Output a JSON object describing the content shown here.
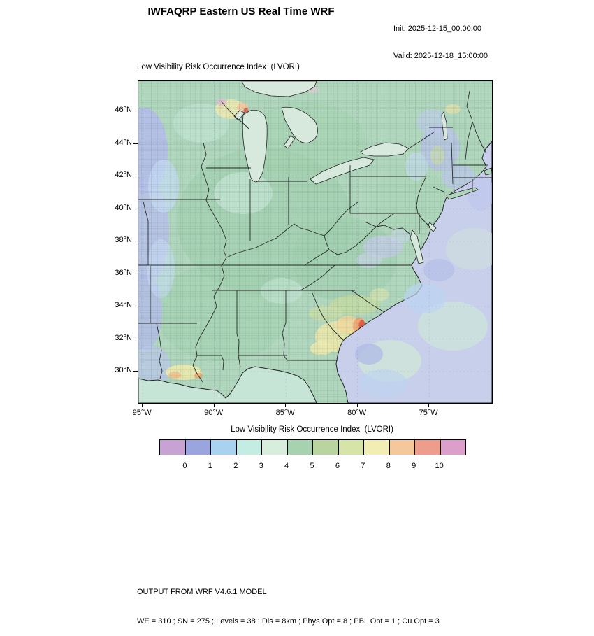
{
  "header": {
    "title": "IWFAQRP Eastern US Real Time WRF",
    "init_label": "Init: 2025-12-15_00:00:00",
    "valid_label": "Valid: 2025-12-18_15:00:00"
  },
  "map": {
    "title": "Low Visibility Risk Occurrence Index  (LVORI)",
    "lat_tick_labels": [
      "46°N",
      "44°N",
      "42°N",
      "40°N",
      "38°N",
      "36°N",
      "34°N",
      "32°N",
      "30°N"
    ],
    "lon_tick_labels": [
      "95°W",
      "90°W",
      "85°W",
      "80°W",
      "75°W"
    ],
    "region": "Eastern US",
    "field_name": "Low Visibility Risk Occurrence Index (LVORI)"
  },
  "colorbar": {
    "title": "Low Visibility Risk Occurrence Index  (LVORI)",
    "tick_labels": [
      "0",
      "1",
      "2",
      "3",
      "4",
      "5",
      "6",
      "7",
      "8",
      "9",
      "10"
    ],
    "cell_colors": [
      "#c8a2d3",
      "#9aa5e0",
      "#a9d2f1",
      "#c3ede2",
      "#d6eedb",
      "#a6d2b0",
      "#bad4a0",
      "#d6e4a8",
      "#f2edb2",
      "#f4c899",
      "#ee9c8b",
      "#dc9fc9"
    ]
  },
  "map_colors": {
    "land_base": "#b0d6bd",
    "ocean": "#c7cfeb",
    "gulf": "#c6e5d6",
    "lakes": "#d6e9dc",
    "low_value_patch": "#b4bde8",
    "high_value_spot": "#df5a48"
  },
  "footer": {
    "line1": "OUTPUT FROM WRF V4.6.1 MODEL",
    "line2": "WE = 310 ; SN = 275 ; Levels = 38 ; Dis = 8km ; Phys Opt = 8 ; PBL Opt = 1 ; Cu Opt = 3"
  }
}
